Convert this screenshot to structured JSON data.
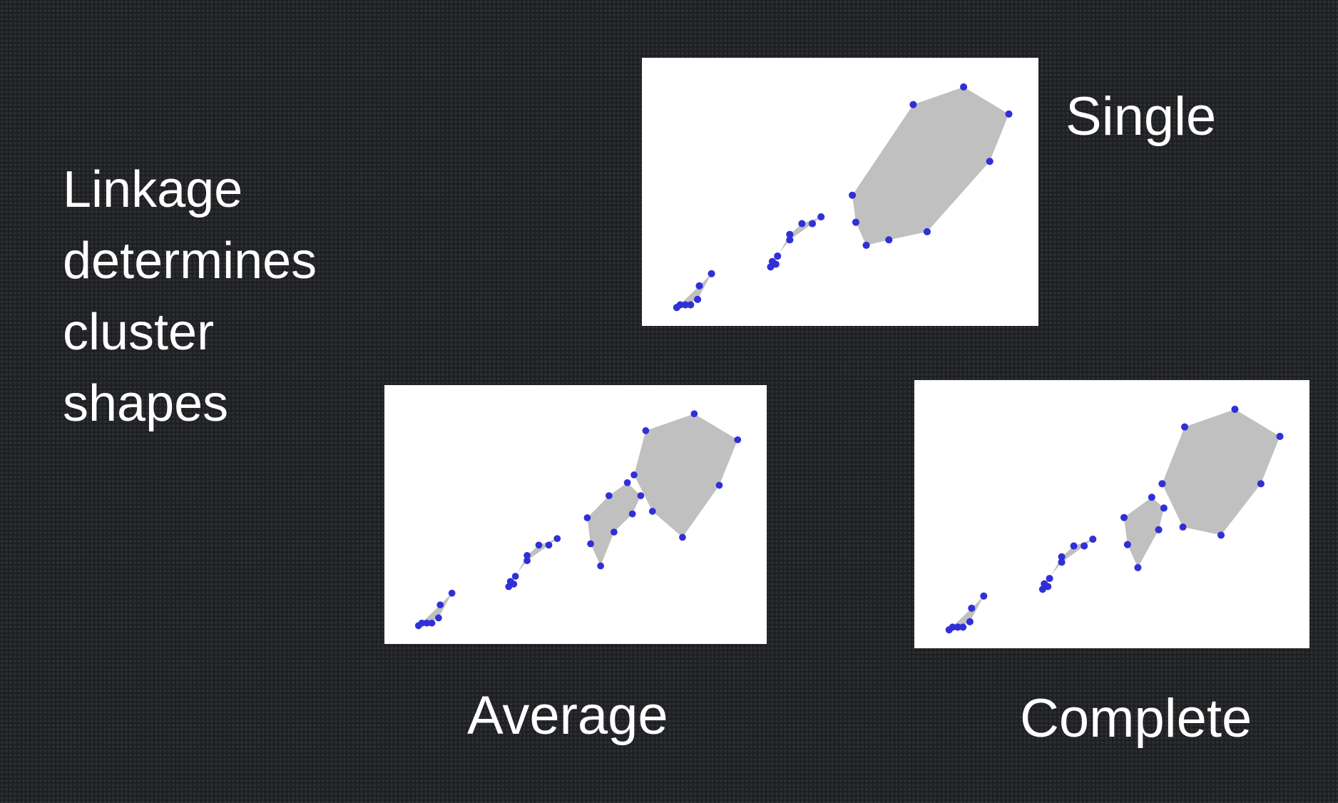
{
  "heading": {
    "lines": [
      "Linkage",
      "determines",
      "cluster",
      "shapes"
    ]
  },
  "labels": {
    "single": "Single",
    "average": "Average",
    "complete": "Complete"
  },
  "colors": {
    "point": "#3030d8",
    "hull": "#c0c0c0",
    "panel": "#ffffff"
  },
  "chart_data": [
    {
      "type": "scatter",
      "method": "Single",
      "grid": false,
      "clusters": [
        {
          "hull": [
            [
              1.1,
              0.2
            ],
            [
              2.4,
              1.8
            ],
            [
              3.1,
              2.7
            ],
            [
              2.3,
              0.8
            ],
            [
              1.6,
              0.4
            ]
          ],
          "points": [
            [
              1.1,
              0.2
            ],
            [
              1.3,
              0.4
            ],
            [
              1.6,
              0.4
            ],
            [
              1.9,
              0.4
            ],
            [
              2.3,
              0.8
            ],
            [
              2.4,
              1.8
            ],
            [
              3.1,
              2.7
            ]
          ]
        },
        {
          "hull": [
            [
              6.5,
              3.2
            ],
            [
              6.9,
              4.0
            ],
            [
              7.6,
              5.6
            ],
            [
              8.3,
              6.4
            ],
            [
              9.4,
              6.9
            ],
            [
              8.9,
              6.4
            ],
            [
              7.6,
              5.2
            ],
            [
              6.6,
              3.6
            ],
            [
              6.8,
              3.4
            ]
          ],
          "points": [
            [
              6.5,
              3.2
            ],
            [
              6.6,
              3.6
            ],
            [
              6.8,
              3.4
            ],
            [
              6.9,
              4.0
            ],
            [
              7.6,
              5.6
            ],
            [
              8.3,
              6.4
            ],
            [
              9.4,
              6.9
            ],
            [
              8.9,
              6.4
            ],
            [
              7.6,
              5.2
            ]
          ]
        },
        {
          "hull": [
            [
              11.2,
              8.5
            ],
            [
              14.7,
              15.2
            ],
            [
              17.6,
              16.5
            ],
            [
              20.2,
              14.5
            ],
            [
              19.1,
              11.0
            ],
            [
              15.5,
              5.8
            ],
            [
              13.3,
              5.2
            ],
            [
              12.0,
              4.8
            ],
            [
              11.4,
              6.5
            ]
          ],
          "points": [
            [
              11.2,
              8.5
            ],
            [
              11.4,
              6.5
            ],
            [
              12.0,
              4.8
            ],
            [
              13.3,
              5.2
            ],
            [
              14.7,
              15.2
            ],
            [
              17.6,
              16.5
            ],
            [
              20.2,
              14.5
            ],
            [
              19.1,
              11.0
            ],
            [
              15.5,
              5.8
            ]
          ]
        }
      ]
    },
    {
      "type": "scatter",
      "method": "Average",
      "grid": false,
      "clusters": [
        {
          "hull": [
            [
              1.1,
              0.2
            ],
            [
              2.4,
              1.8
            ],
            [
              3.1,
              2.7
            ],
            [
              2.3,
              0.8
            ],
            [
              1.6,
              0.4
            ]
          ],
          "points": [
            [
              1.1,
              0.2
            ],
            [
              1.3,
              0.4
            ],
            [
              1.6,
              0.4
            ],
            [
              1.9,
              0.4
            ],
            [
              2.3,
              0.8
            ],
            [
              2.4,
              1.8
            ],
            [
              3.1,
              2.7
            ]
          ]
        },
        {
          "hull": [
            [
              6.5,
              3.2
            ],
            [
              6.9,
              4.0
            ],
            [
              7.6,
              5.6
            ],
            [
              8.3,
              6.4
            ],
            [
              9.4,
              6.9
            ],
            [
              8.9,
              6.4
            ],
            [
              7.6,
              5.2
            ],
            [
              6.6,
              3.6
            ],
            [
              6.8,
              3.4
            ]
          ],
          "points": [
            [
              6.5,
              3.2
            ],
            [
              6.6,
              3.6
            ],
            [
              6.8,
              3.4
            ],
            [
              6.9,
              4.0
            ],
            [
              7.6,
              5.6
            ],
            [
              8.3,
              6.4
            ],
            [
              9.4,
              6.9
            ],
            [
              8.9,
              6.4
            ],
            [
              7.6,
              5.2
            ]
          ]
        },
        {
          "hull": [
            [
              11.2,
              8.5
            ],
            [
              12.5,
              10.2
            ],
            [
              13.6,
              11.2
            ],
            [
              14.4,
              10.2
            ],
            [
              13.9,
              8.8
            ],
            [
              12.8,
              7.4
            ],
            [
              12.0,
              4.8
            ],
            [
              11.4,
              6.5
            ]
          ],
          "points": [
            [
              11.2,
              8.5
            ],
            [
              11.4,
              6.5
            ],
            [
              12.0,
              4.8
            ],
            [
              12.5,
              10.2
            ],
            [
              13.6,
              11.2
            ],
            [
              14.4,
              10.2
            ],
            [
              13.9,
              8.8
            ],
            [
              12.8,
              7.4
            ]
          ]
        },
        {
          "hull": [
            [
              14.0,
              11.8
            ],
            [
              14.7,
              15.2
            ],
            [
              17.6,
              16.5
            ],
            [
              20.2,
              14.5
            ],
            [
              19.1,
              11.0
            ],
            [
              16.9,
              7.0
            ],
            [
              15.1,
              9.0
            ]
          ],
          "points": [
            [
              14.0,
              11.8
            ],
            [
              14.7,
              15.2
            ],
            [
              17.6,
              16.5
            ],
            [
              20.2,
              14.5
            ],
            [
              19.1,
              11.0
            ],
            [
              16.9,
              7.0
            ],
            [
              15.1,
              9.0
            ]
          ]
        }
      ]
    },
    {
      "type": "scatter",
      "method": "Complete",
      "grid": false,
      "clusters": [
        {
          "hull": [
            [
              1.1,
              0.2
            ],
            [
              2.4,
              1.8
            ],
            [
              3.1,
              2.7
            ],
            [
              2.3,
              0.8
            ],
            [
              1.6,
              0.4
            ]
          ],
          "points": [
            [
              1.1,
              0.2
            ],
            [
              1.3,
              0.4
            ],
            [
              1.6,
              0.4
            ],
            [
              1.9,
              0.4
            ],
            [
              2.3,
              0.8
            ],
            [
              2.4,
              1.8
            ],
            [
              3.1,
              2.7
            ]
          ]
        },
        {
          "hull": [
            [
              6.5,
              3.2
            ],
            [
              6.9,
              4.0
            ],
            [
              7.6,
              5.6
            ],
            [
              8.3,
              6.4
            ],
            [
              9.4,
              6.9
            ],
            [
              8.9,
              6.4
            ],
            [
              7.6,
              5.2
            ],
            [
              6.6,
              3.6
            ],
            [
              6.8,
              3.4
            ]
          ],
          "points": [
            [
              6.5,
              3.2
            ],
            [
              6.6,
              3.6
            ],
            [
              6.8,
              3.4
            ],
            [
              6.9,
              4.0
            ],
            [
              7.6,
              5.6
            ],
            [
              8.3,
              6.4
            ],
            [
              9.4,
              6.9
            ],
            [
              8.9,
              6.4
            ],
            [
              7.6,
              5.2
            ]
          ]
        },
        {
          "hull": [
            [
              11.2,
              8.5
            ],
            [
              12.8,
              10.0
            ],
            [
              13.5,
              9.2
            ],
            [
              13.2,
              7.6
            ],
            [
              12.0,
              4.8
            ],
            [
              11.4,
              6.5
            ]
          ],
          "points": [
            [
              11.2,
              8.5
            ],
            [
              11.4,
              6.5
            ],
            [
              12.0,
              4.8
            ],
            [
              12.8,
              10.0
            ],
            [
              13.5,
              9.2
            ],
            [
              13.2,
              7.6
            ]
          ]
        },
        {
          "hull": [
            [
              13.4,
              11.0
            ],
            [
              14.7,
              15.2
            ],
            [
              17.6,
              16.5
            ],
            [
              20.2,
              14.5
            ],
            [
              19.1,
              11.0
            ],
            [
              16.8,
              7.2
            ],
            [
              14.6,
              7.8
            ]
          ],
          "points": [
            [
              13.4,
              11.0
            ],
            [
              14.7,
              15.2
            ],
            [
              17.6,
              16.5
            ],
            [
              20.2,
              14.5
            ],
            [
              19.1,
              11.0
            ],
            [
              16.8,
              7.2
            ],
            [
              14.6,
              7.8
            ]
          ]
        }
      ]
    }
  ]
}
